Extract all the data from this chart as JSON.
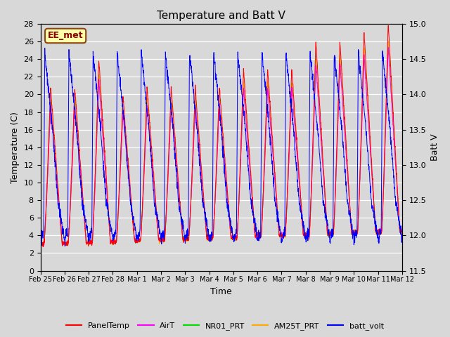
{
  "title": "Temperature and Batt V",
  "xlabel": "Time",
  "ylabel_left": "Temperature (C)",
  "ylabel_right": "Batt V",
  "annotation": "EE_met",
  "background_color": "#d8d8d8",
  "left_ylim": [
    0,
    28
  ],
  "right_ylim": [
    11.5,
    15.0
  ],
  "x_tick_labels": [
    "Feb 25",
    "Feb 26",
    "Feb 27",
    "Feb 28",
    "Mar 1",
    "Mar 2",
    "Mar 3",
    "Mar 4",
    "Mar 5",
    "Mar 6",
    "Mar 7",
    "Mar 8",
    "Mar 9",
    "Mar 10",
    "Mar 11",
    "Mar 12"
  ],
  "colors": {
    "PanelTemp": "#ff0000",
    "AirT": "#ff00ff",
    "NR01_PRT": "#00dd00",
    "AM25T_PRT": "#ffaa00",
    "batt_volt": "#0000ff"
  },
  "n_days": 15,
  "pts_per_day": 144
}
